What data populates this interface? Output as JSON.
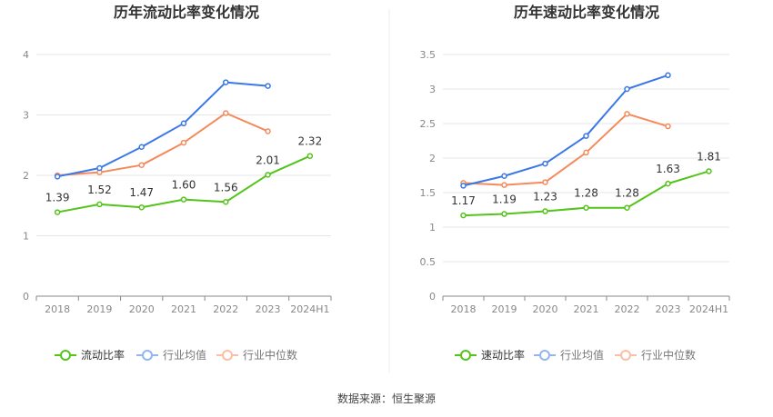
{
  "source_label": "数据来源：恒生聚源",
  "chart_data": [
    {
      "type": "line",
      "title": "历年流动比率变化情况",
      "categories": [
        "2018",
        "2019",
        "2020",
        "2021",
        "2022",
        "2023",
        "2024H1"
      ],
      "ylim": [
        0,
        4
      ],
      "yticks": [
        "0",
        "1",
        "2",
        "3",
        "4"
      ],
      "grid": true,
      "legend_position": "bottom",
      "series": [
        {
          "name": "流动比率",
          "color": "#52c41a",
          "values": [
            1.39,
            1.52,
            1.47,
            1.6,
            1.56,
            2.01,
            2.32
          ],
          "labels": [
            "1.39",
            "1.52",
            "1.47",
            "1.60",
            "1.56",
            "2.01",
            "2.32"
          ]
        },
        {
          "name": "行业均值",
          "color": "#3b78e7",
          "values": [
            1.98,
            2.12,
            2.47,
            2.86,
            3.54,
            3.48,
            null
          ]
        },
        {
          "name": "行业中位数",
          "color": "#f58a5c",
          "values": [
            2.0,
            2.05,
            2.17,
            2.54,
            3.03,
            2.73,
            null
          ]
        }
      ]
    },
    {
      "type": "line",
      "title": "历年速动比率变化情况",
      "categories": [
        "2018",
        "2019",
        "2020",
        "2021",
        "2022",
        "2023",
        "2024H1"
      ],
      "ylim": [
        0,
        3.5
      ],
      "yticks": [
        "0",
        "0.5",
        "1",
        "1.5",
        "2",
        "2.5",
        "3",
        "3.5"
      ],
      "grid": true,
      "legend_position": "bottom",
      "series": [
        {
          "name": "速动比率",
          "color": "#52c41a",
          "values": [
            1.17,
            1.19,
            1.23,
            1.28,
            1.28,
            1.63,
            1.81
          ],
          "labels": [
            "1.17",
            "1.19",
            "1.23",
            "1.28",
            "1.28",
            "1.63",
            "1.81"
          ]
        },
        {
          "name": "行业均值",
          "color": "#3b78e7",
          "values": [
            1.6,
            1.74,
            1.92,
            2.32,
            3.0,
            3.2,
            null
          ]
        },
        {
          "name": "行业中位数",
          "color": "#f58a5c",
          "values": [
            1.64,
            1.61,
            1.65,
            2.08,
            2.64,
            2.46,
            null
          ]
        }
      ]
    }
  ]
}
